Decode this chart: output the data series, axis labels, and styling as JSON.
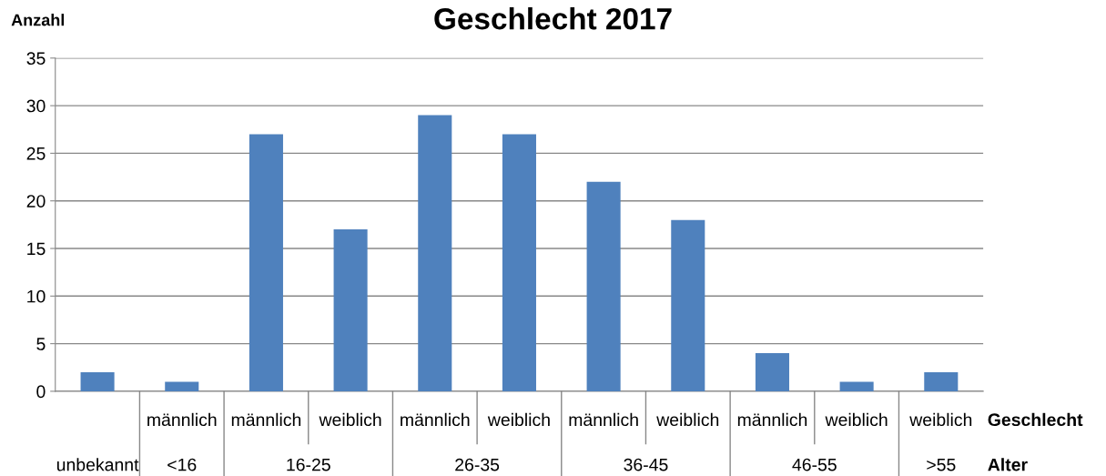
{
  "chart_data": {
    "type": "bar",
    "title": "Geschlecht 2017",
    "ylabel": "Anzahl",
    "categories": [
      "unbekannt",
      "<16",
      "16-25",
      "26-35",
      "36-45",
      "46-55",
      ">55"
    ],
    "series": [
      {
        "color": "#4f81bd",
        "values": [
          2,
          null,
          null,
          null,
          null,
          null,
          null
        ]
      },
      {
        "name": "männlich",
        "color": "#4f81bd",
        "values": [
          null,
          1,
          27,
          29,
          22,
          4,
          null
        ]
      },
      {
        "name": "weiblich",
        "color": "#4f81bd",
        "values": [
          null,
          null,
          17,
          27,
          18,
          1,
          2
        ]
      }
    ],
    "ylim": [
      0,
      35
    ],
    "yticks": [
      0,
      5,
      10,
      15,
      20,
      25,
      30,
      35
    ],
    "grid": "y",
    "legend": false,
    "annotations": [
      "Geschlecht",
      "Alter"
    ]
  }
}
